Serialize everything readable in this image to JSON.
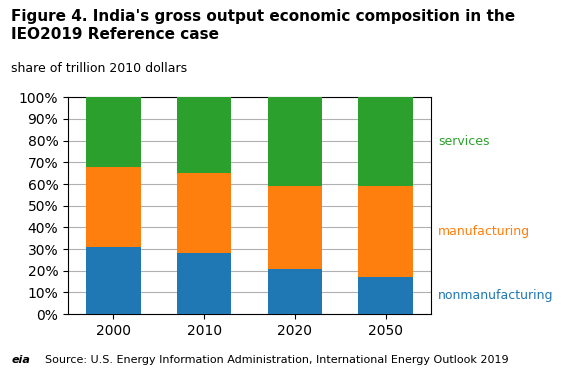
{
  "chart_data": {
    "type": "bar",
    "stacked": true,
    "title": "Figure 4. India's gross output economic composition in the IEO2019 Reference case",
    "subtitle": "share of trillion 2010 dollars",
    "annotations": [
      "eia",
      "Source: U.S. Energy Information Administration, International Energy Outlook 2019"
    ],
    "categories": [
      "2000",
      "2010",
      "2020",
      "2050"
    ],
    "series": [
      {
        "name": "nonmanufacturing",
        "values": [
          0.31,
          0.28,
          0.21,
          0.17
        ]
      },
      {
        "name": "manufacturing",
        "values": [
          0.37,
          0.37,
          0.38,
          0.42
        ]
      },
      {
        "name": "services",
        "values": [
          0.32,
          0.35,
          0.41,
          0.41
        ]
      }
    ],
    "ylim": [
      0,
      1.0
    ],
    "yticks": [
      {
        "value": 0,
        "label": "0%"
      },
      {
        "value": 0.1,
        "label": "10%"
      },
      {
        "value": 0.2,
        "label": "20%"
      },
      {
        "value": 0.3,
        "label": "30%"
      },
      {
        "value": 0.4,
        "label": "40%"
      },
      {
        "value": 0.5,
        "label": "50%"
      },
      {
        "value": 0.6,
        "label": "60%"
      },
      {
        "value": 0.7,
        "label": "70%"
      },
      {
        "value": 0.8,
        "label": "80%"
      },
      {
        "value": 0.9,
        "label": "90%"
      },
      {
        "value": 1.0,
        "label": "100%"
      }
    ],
    "grid": true
  }
}
